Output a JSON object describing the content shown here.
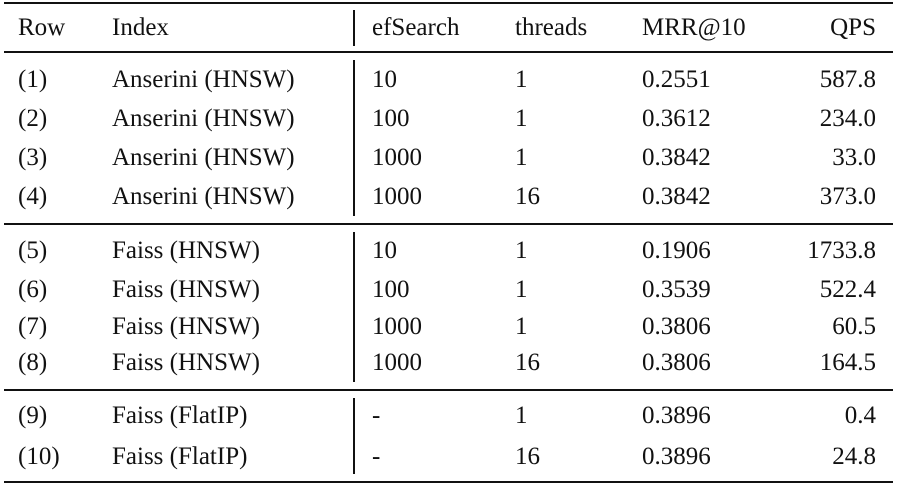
{
  "table": {
    "headers": [
      "Row",
      "Index",
      "efSearch",
      "threads",
      "MRR@10",
      "QPS"
    ],
    "groups": [
      [
        [
          "(1)",
          "Anserini (HNSW)",
          "10",
          "1",
          "0.2551",
          "587.8"
        ],
        [
          "(2)",
          "Anserini (HNSW)",
          "100",
          "1",
          "0.3612",
          "234.0"
        ],
        [
          "(3)",
          "Anserini (HNSW)",
          "1000",
          "1",
          "0.3842",
          "33.0"
        ],
        [
          "(4)",
          "Anserini (HNSW)",
          "1000",
          "16",
          "0.3842",
          "373.0"
        ]
      ],
      [
        [
          "(5)",
          "Faiss (HNSW)",
          "10",
          "1",
          "0.1906",
          "1733.8"
        ],
        [
          "(6)",
          "Faiss (HNSW)",
          "100",
          "1",
          "0.3539",
          "522.4"
        ],
        [
          "(7)",
          "Faiss (HNSW)",
          "1000",
          "1",
          "0.3806",
          "60.5"
        ],
        [
          "(8)",
          "Faiss (HNSW)",
          "1000",
          "16",
          "0.3806",
          "164.5"
        ]
      ],
      [
        [
          "(9)",
          "Faiss (FlatIP)",
          "-",
          "1",
          "0.3896",
          "0.4"
        ],
        [
          "(10)",
          "Faiss (FlatIP)",
          "-",
          "16",
          "0.3896",
          "24.8"
        ]
      ]
    ]
  }
}
